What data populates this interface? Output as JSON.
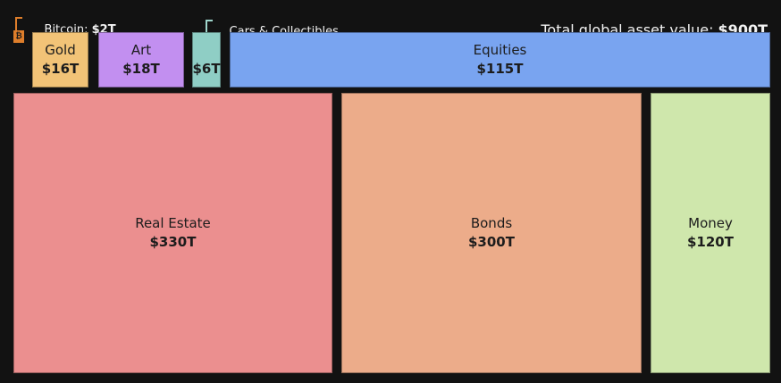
{
  "header": {
    "title_prefix": "Total global asset value: ",
    "title_value": "$900T"
  },
  "callouts": {
    "bitcoin": {
      "label": "Bitcoin: ",
      "value": "$2T",
      "line_color": "#de7e2b"
    },
    "cars": {
      "label": "Cars & Collectibles",
      "line_color": "#9fd6cc"
    }
  },
  "boxes": {
    "bitcoin": {
      "symbol": "₿",
      "color": "#de7e2b"
    },
    "gold": {
      "name": "Gold",
      "value": "$16T",
      "color": "#f2c377"
    },
    "art": {
      "name": "Art",
      "value": "$18T",
      "color": "#c28ff0"
    },
    "cars": {
      "name": "",
      "value": "$6T",
      "color": "#8fcec5"
    },
    "equities": {
      "name": "Equities",
      "value": "$115T",
      "color": "#79a4f0"
    },
    "real_estate": {
      "name": "Real Estate",
      "value": "$330T",
      "color": "#eb8f8f"
    },
    "bonds": {
      "name": "Bonds",
      "value": "$300T",
      "color": "#ecac8a"
    },
    "money": {
      "name": "Money",
      "value": "$120T",
      "color": "#cfe7ac"
    }
  },
  "chart_data": {
    "type": "treemap",
    "title": "Total global asset value: $900T",
    "unit": "trillions of USD",
    "total_value": 900,
    "background": "#121212",
    "layout": "small assets in top row with callout labels for Bitcoin and Cars & Collectibles; large assets in bottom row",
    "items": [
      {
        "label": "Bitcoin",
        "value": 2,
        "display_value": "$2T",
        "color": "#de7e2b"
      },
      {
        "label": "Gold",
        "value": 16,
        "display_value": "$16T",
        "color": "#f2c377"
      },
      {
        "label": "Art",
        "value": 18,
        "display_value": "$18T",
        "color": "#c28ff0"
      },
      {
        "label": "Cars & Collectibles",
        "value": 6,
        "display_value": "$6T",
        "color": "#8fcec5"
      },
      {
        "label": "Equities",
        "value": 115,
        "display_value": "$115T",
        "color": "#79a4f0"
      },
      {
        "label": "Real Estate",
        "value": 330,
        "display_value": "$330T",
        "color": "#eb8f8f"
      },
      {
        "label": "Bonds",
        "value": 300,
        "display_value": "$300T",
        "color": "#ecac8a"
      },
      {
        "label": "Money",
        "value": 120,
        "display_value": "$120T",
        "color": "#cfe7ac"
      }
    ]
  }
}
